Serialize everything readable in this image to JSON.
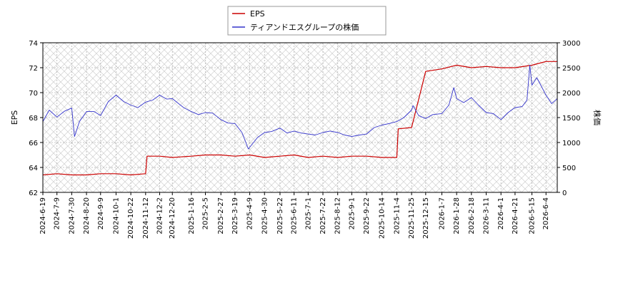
{
  "chart_data": {
    "type": "line",
    "legend": {
      "placement": "top-center",
      "entries": [
        "EPS",
        "ティアンドエスグループの株価"
      ]
    },
    "grid": true,
    "y_left": {
      "label": "EPS",
      "range": [
        62,
        74
      ],
      "ticks": [
        62,
        64,
        66,
        68,
        70,
        72,
        74
      ]
    },
    "y_right": {
      "label": "株価",
      "range": [
        0,
        3000
      ],
      "ticks": [
        0,
        500,
        1000,
        1500,
        2000,
        2500,
        3000
      ]
    },
    "x_ticks": [
      "2024-6-19",
      "2024-7-9",
      "2024-7-30",
      "2024-8-20",
      "2024-9-9",
      "2024-10-1",
      "2024-10-22",
      "2024-11-12",
      "2024-12-2",
      "2024-12-20",
      "2025-1-16",
      "2025-2-5",
      "2025-2-27",
      "2025-3-19",
      "2025-4-9",
      "2025-4-30",
      "2025-5-22",
      "2025-6-11",
      "2025-7-1",
      "2025-7-22",
      "2025-8-12",
      "2025-9-1",
      "2025-9-22",
      "2025-10-14",
      "2025-11-4",
      "2025-11-25",
      "2025-12-15",
      "2026-1-7",
      "2026-1-28",
      "2026-2-18",
      "2026-3-11",
      "2026-4-1",
      "2026-4-21",
      "2026-5-15",
      "2026-6-4"
    ],
    "x_range": [
      "2024-6-19",
      "2026-6-20"
    ],
    "series": [
      {
        "name": "EPS",
        "color": "#cc0000",
        "axis": "left",
        "points": [
          [
            "2024-6-19",
            63.4
          ],
          [
            "2024-7-9",
            63.5
          ],
          [
            "2024-7-30",
            63.4
          ],
          [
            "2024-8-20",
            63.4
          ],
          [
            "2024-9-9",
            63.5
          ],
          [
            "2024-10-1",
            63.5
          ],
          [
            "2024-10-22",
            63.4
          ],
          [
            "2024-11-12",
            63.5
          ],
          [
            "2024-11-14",
            64.9
          ],
          [
            "2024-12-2",
            64.9
          ],
          [
            "2024-12-20",
            64.8
          ],
          [
            "2025-1-16",
            64.9
          ],
          [
            "2025-2-5",
            65.0
          ],
          [
            "2025-2-27",
            65.0
          ],
          [
            "2025-3-19",
            64.9
          ],
          [
            "2025-4-9",
            65.0
          ],
          [
            "2025-4-30",
            64.8
          ],
          [
            "2025-5-22",
            64.9
          ],
          [
            "2025-6-11",
            65.0
          ],
          [
            "2025-7-1",
            64.8
          ],
          [
            "2025-7-22",
            64.9
          ],
          [
            "2025-8-12",
            64.8
          ],
          [
            "2025-9-1",
            64.9
          ],
          [
            "2025-9-22",
            64.9
          ],
          [
            "2025-10-14",
            64.8
          ],
          [
            "2025-11-4",
            64.8
          ],
          [
            "2025-11-6",
            67.1
          ],
          [
            "2025-11-25",
            67.2
          ],
          [
            "2025-12-15",
            71.7
          ],
          [
            "2026-1-7",
            71.9
          ],
          [
            "2026-1-28",
            72.2
          ],
          [
            "2026-2-18",
            72.0
          ],
          [
            "2026-3-11",
            72.1
          ],
          [
            "2026-4-1",
            72.0
          ],
          [
            "2026-4-21",
            72.0
          ],
          [
            "2026-5-15",
            72.2
          ],
          [
            "2026-6-4",
            72.5
          ],
          [
            "2026-6-20",
            72.5
          ]
        ]
      },
      {
        "name": "ティアンドエスグループの株価",
        "color": "#3333cc",
        "axis": "right",
        "points": [
          [
            "2024-6-19",
            1420
          ],
          [
            "2024-6-28",
            1650
          ],
          [
            "2024-7-9",
            1510
          ],
          [
            "2024-7-20",
            1630
          ],
          [
            "2024-7-30",
            1690
          ],
          [
            "2024-8-3",
            1120
          ],
          [
            "2024-8-10",
            1420
          ],
          [
            "2024-8-20",
            1620
          ],
          [
            "2024-8-31",
            1620
          ],
          [
            "2024-9-9",
            1540
          ],
          [
            "2024-9-20",
            1820
          ],
          [
            "2024-10-1",
            1950
          ],
          [
            "2024-10-12",
            1820
          ],
          [
            "2024-10-22",
            1750
          ],
          [
            "2024-11-1",
            1700
          ],
          [
            "2024-11-12",
            1810
          ],
          [
            "2024-11-22",
            1850
          ],
          [
            "2024-12-2",
            1950
          ],
          [
            "2024-12-12",
            1870
          ],
          [
            "2024-12-20",
            1880
          ],
          [
            "2025-1-5",
            1700
          ],
          [
            "2025-1-16",
            1620
          ],
          [
            "2025-1-26",
            1560
          ],
          [
            "2025-2-5",
            1600
          ],
          [
            "2025-2-15",
            1590
          ],
          [
            "2025-2-27",
            1460
          ],
          [
            "2025-3-9",
            1390
          ],
          [
            "2025-3-19",
            1380
          ],
          [
            "2025-3-29",
            1200
          ],
          [
            "2025-4-7",
            870
          ],
          [
            "2025-4-20",
            1100
          ],
          [
            "2025-4-30",
            1200
          ],
          [
            "2025-5-10",
            1220
          ],
          [
            "2025-5-22",
            1290
          ],
          [
            "2025-6-1",
            1190
          ],
          [
            "2025-6-11",
            1230
          ],
          [
            "2025-6-21",
            1190
          ],
          [
            "2025-7-1",
            1170
          ],
          [
            "2025-7-11",
            1150
          ],
          [
            "2025-7-22",
            1200
          ],
          [
            "2025-8-1",
            1230
          ],
          [
            "2025-8-12",
            1200
          ],
          [
            "2025-8-22",
            1150
          ],
          [
            "2025-9-1",
            1120
          ],
          [
            "2025-9-12",
            1150
          ],
          [
            "2025-9-22",
            1170
          ],
          [
            "2025-10-3",
            1300
          ],
          [
            "2025-10-14",
            1350
          ],
          [
            "2025-10-24",
            1380
          ],
          [
            "2025-11-4",
            1420
          ],
          [
            "2025-11-14",
            1500
          ],
          [
            "2025-11-25",
            1650
          ],
          [
            "2025-11-27",
            1740
          ],
          [
            "2025-12-5",
            1540
          ],
          [
            "2025-12-15",
            1480
          ],
          [
            "2025-12-25",
            1560
          ],
          [
            "2026-1-7",
            1580
          ],
          [
            "2026-1-17",
            1750
          ],
          [
            "2026-1-24",
            2100
          ],
          [
            "2026-1-28",
            1880
          ],
          [
            "2026-2-7",
            1800
          ],
          [
            "2026-2-18",
            1900
          ],
          [
            "2026-2-28",
            1750
          ],
          [
            "2026-3-11",
            1600
          ],
          [
            "2026-3-21",
            1580
          ],
          [
            "2026-4-1",
            1460
          ],
          [
            "2026-4-11",
            1600
          ],
          [
            "2026-4-21",
            1700
          ],
          [
            "2026-5-1",
            1720
          ],
          [
            "2026-5-8",
            1850
          ],
          [
            "2026-5-12",
            2550
          ],
          [
            "2026-5-15",
            2150
          ],
          [
            "2026-5-22",
            2300
          ],
          [
            "2026-6-4",
            1950
          ],
          [
            "2026-6-12",
            1780
          ],
          [
            "2026-6-20",
            1880
          ]
        ]
      }
    ]
  }
}
